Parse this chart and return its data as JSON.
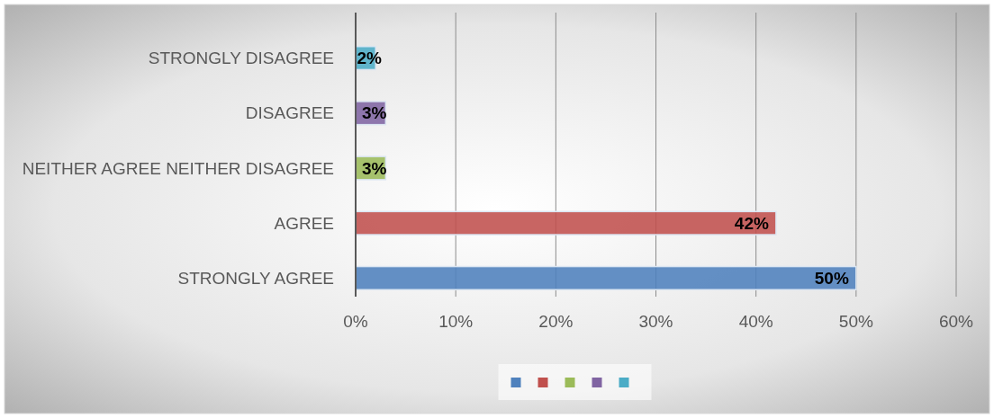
{
  "chart_data": {
    "type": "bar",
    "orientation": "horizontal",
    "categories": [
      "STRONGLY DISAGREE",
      "DISAGREE",
      "NEITHER AGREE NEITHER DISAGREE",
      "AGREE",
      "STRONGLY AGREE"
    ],
    "values": [
      2,
      3,
      3,
      42,
      50
    ],
    "colors": [
      "#4bacc6",
      "#8064a2",
      "#9bbb59",
      "#c0504d",
      "#4f81bd"
    ],
    "xlim": [
      0,
      60
    ],
    "xticks": [
      {
        "value": 0,
        "label": "0%"
      },
      {
        "value": 10,
        "label": "10%"
      },
      {
        "value": 20,
        "label": "20%"
      },
      {
        "value": 30,
        "label": "30%"
      },
      {
        "value": 40,
        "label": "40%"
      },
      {
        "value": 50,
        "label": "50%"
      },
      {
        "value": 60,
        "label": "60%"
      }
    ],
    "value_labels": [
      "2%",
      "3%",
      "3%",
      "42%",
      "50%"
    ],
    "grid": "x"
  }
}
